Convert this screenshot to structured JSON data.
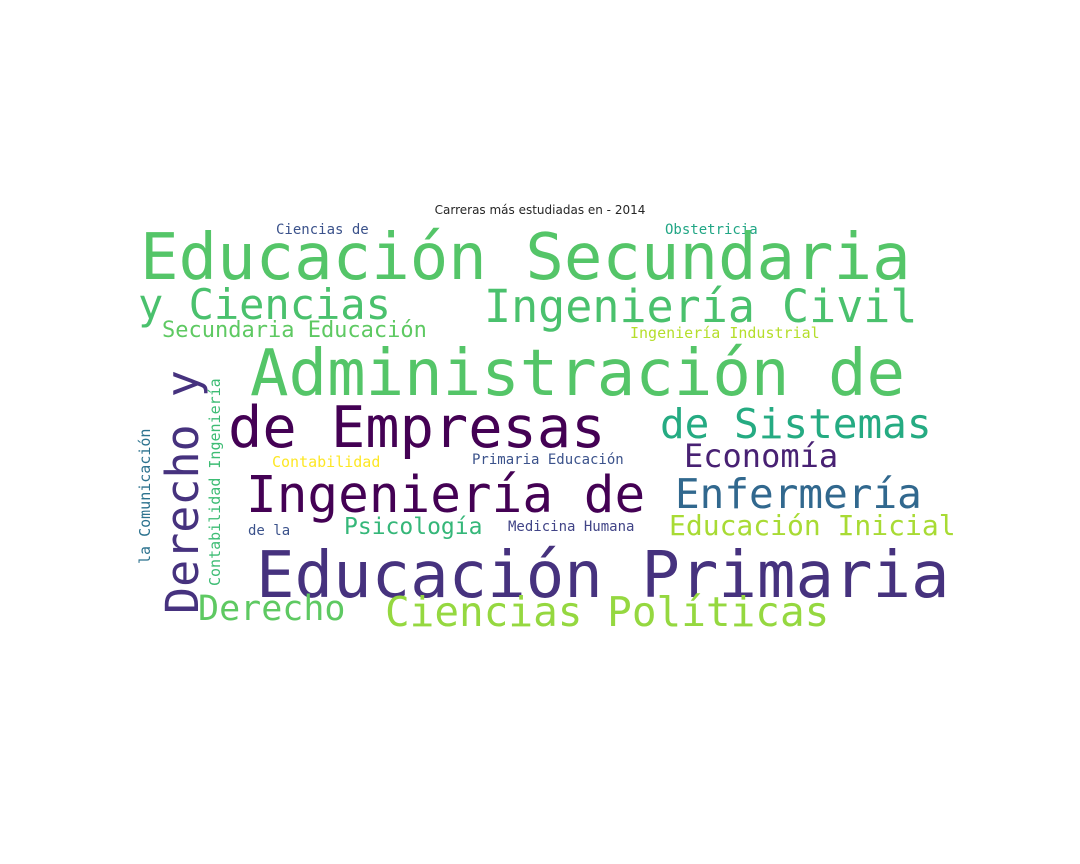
{
  "title": "Carreras más estudiadas en - 2014",
  "words": {
    "ciencias_de": {
      "text": "Ciencias de",
      "color": "#3b528b"
    },
    "obstetricia": {
      "text": "Obstetricia",
      "color": "#21a685"
    },
    "educacion_secundaria": {
      "text": "Educación Secundaria",
      "color": "#54c568"
    },
    "y_ciencias": {
      "text": "y Ciencias",
      "color": "#4ac16d"
    },
    "ingenieria_civil": {
      "text": "Ingeniería Civil",
      "color": "#4ac16d"
    },
    "secundaria_educacion": {
      "text": "Secundaria Educación",
      "color": "#5ec962"
    },
    "ingenieria_industrial": {
      "text": "Ingeniería Industrial",
      "color": "#b5de2b"
    },
    "administracion_de": {
      "text": "Administración de",
      "color": "#54c568"
    },
    "de_empresas": {
      "text": "de Empresas",
      "color": "#440154"
    },
    "de_sistemas": {
      "text": "de Sistemas",
      "color": "#25ab82"
    },
    "economia": {
      "text": "Economía",
      "color": "#482173"
    },
    "contabilidad": {
      "text": "Contabilidad",
      "color": "#fde725"
    },
    "primaria_educacion": {
      "text": "Primaria Educación",
      "color": "#3b528b"
    },
    "ingenieria_de": {
      "text": "Ingeniería de",
      "color": "#440154"
    },
    "enfermeria": {
      "text": "Enfermería",
      "color": "#31688e"
    },
    "de_la": {
      "text": "de la",
      "color": "#3b528b"
    },
    "psicologia": {
      "text": "Psicología",
      "color": "#35b779"
    },
    "medicina_humana": {
      "text": "Medicina Humana",
      "color": "#414487"
    },
    "educacion_inicial": {
      "text": "Educación Inicial",
      "color": "#a8db34"
    },
    "educacion_primaria": {
      "text": "Educación Primaria",
      "color": "#46327e"
    },
    "derecho": {
      "text": "Derecho",
      "color": "#5ec962"
    },
    "ciencias_politicas": {
      "text": "Ciencias Políticas",
      "color": "#95d840"
    },
    "derecho_y": {
      "text": "Derecho y",
      "color": "#46327e"
    },
    "contabilidad_ingenieria": {
      "text": "Contabilidad Ingeniería",
      "color": "#3dbc74"
    },
    "la_comunicacion": {
      "text": "la Comunicación",
      "color": "#2c728e"
    }
  }
}
